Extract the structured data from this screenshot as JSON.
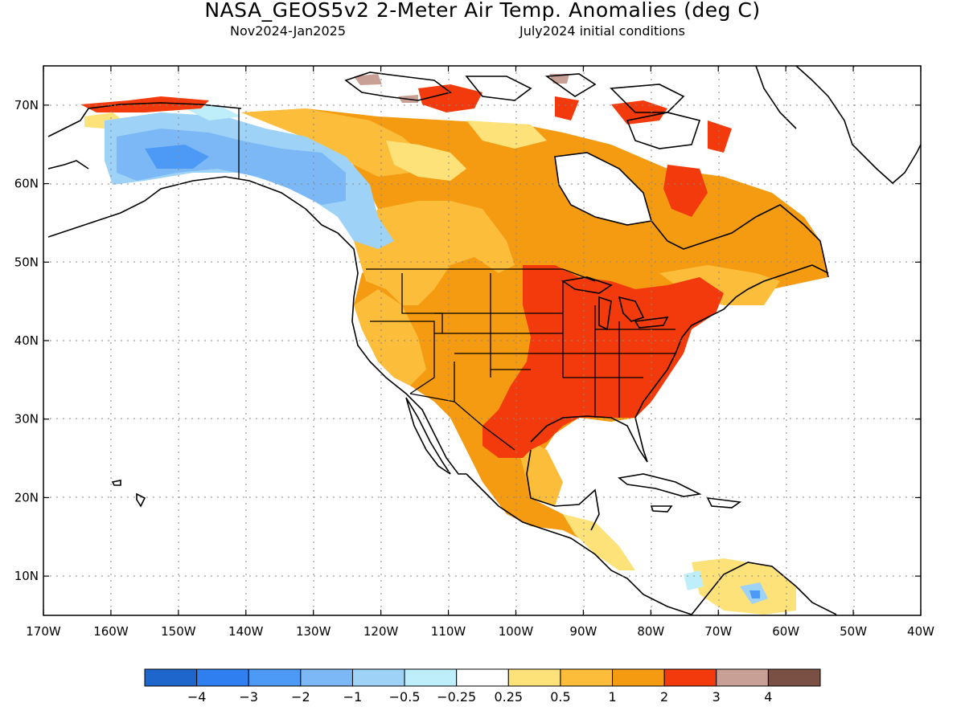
{
  "title": "NASA_GEOS5v2 2-Meter Air Temp. Anomalies (deg C)",
  "subtitle_left": "Nov2024-Jan2025",
  "subtitle_right": "July2024 initial conditions",
  "map": {
    "lon_range": [
      -170,
      -40
    ],
    "lat_range": [
      5,
      75
    ],
    "lon_ticks": [
      -170,
      -160,
      -150,
      -140,
      -130,
      -120,
      -110,
      -100,
      -90,
      -80,
      -70,
      -60,
      -50,
      -40
    ],
    "lon_labels": [
      "170W",
      "160W",
      "150W",
      "140W",
      "130W",
      "120W",
      "110W",
      "100W",
      "90W",
      "80W",
      "70W",
      "60W",
      "50W",
      "40W"
    ],
    "lat_ticks": [
      10,
      20,
      30,
      40,
      50,
      60,
      70
    ],
    "lat_labels": [
      "10N",
      "20N",
      "30N",
      "40N",
      "50N",
      "60N",
      "70N"
    ],
    "gridlines": "dotted"
  },
  "colorbar": {
    "colors": [
      "#1f66cc",
      "#2f7ff0",
      "#4c9af5",
      "#7bb8f5",
      "#9ed3f7",
      "#bdeefa",
      "#ffffff",
      "#fde27a",
      "#fbbd3a",
      "#f49b12",
      "#f23a0c",
      "#c9a096",
      "#7a5044"
    ],
    "labels": [
      "−4",
      "−3",
      "−2",
      "−1",
      "−0.5",
      "−0.25",
      "0.25",
      "0.5",
      "1",
      "2",
      "3",
      "4"
    ]
  }
}
